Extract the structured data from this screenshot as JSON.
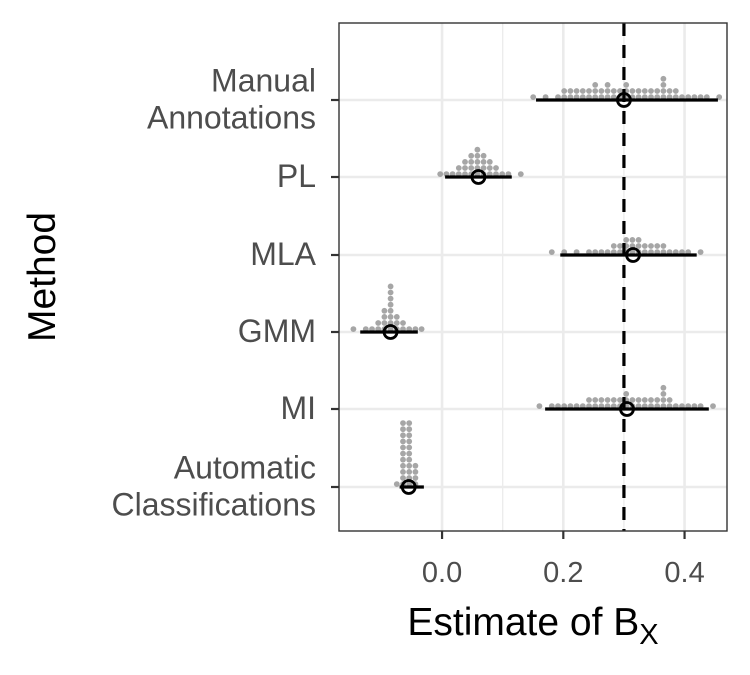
{
  "chart_data": {
    "type": "scatter",
    "title": "",
    "xlabel_main": "Estimate of B",
    "xlabel_sub": "X",
    "ylabel": "Method",
    "xlim": [
      -0.17,
      0.47
    ],
    "x_ticks": [
      "0.0",
      "0.2",
      "0.4"
    ],
    "x_tick_values": [
      0.0,
      0.2,
      0.4
    ],
    "grid": true,
    "reference_line": {
      "x": 0.3,
      "style": "dashed"
    },
    "colors": {
      "points": "#a6a6a6",
      "estimate": "#000000",
      "grid": "#ebebeb",
      "panel_border": "#333333"
    },
    "categories": [
      {
        "label_lines": [
          "Manual",
          "Annotations"
        ],
        "mean": 0.3,
        "ci": [
          0.155,
          0.455
        ],
        "points": [
          0.15,
          0.17,
          0.19,
          0.2,
          0.2,
          0.21,
          0.21,
          0.22,
          0.22,
          0.23,
          0.23,
          0.24,
          0.24,
          0.25,
          0.25,
          0.25,
          0.26,
          0.26,
          0.27,
          0.27,
          0.27,
          0.28,
          0.28,
          0.29,
          0.29,
          0.3,
          0.3,
          0.3,
          0.31,
          0.31,
          0.32,
          0.32,
          0.33,
          0.33,
          0.34,
          0.34,
          0.35,
          0.35,
          0.36,
          0.36,
          0.37,
          0.37,
          0.38,
          0.38,
          0.39,
          0.39,
          0.4,
          0.41,
          0.42,
          0.43,
          0.44,
          0.46
        ]
      },
      {
        "label_lines": [
          "PL"
        ],
        "mean": 0.06,
        "ci": [
          0.005,
          0.115
        ],
        "points": [
          0.0,
          0.01,
          0.02,
          0.03,
          0.03,
          0.04,
          0.04,
          0.04,
          0.05,
          0.05,
          0.05,
          0.05,
          0.06,
          0.06,
          0.06,
          0.06,
          0.06,
          0.07,
          0.07,
          0.07,
          0.07,
          0.08,
          0.08,
          0.08,
          0.09,
          0.09,
          0.1,
          0.11,
          0.13
        ]
      },
      {
        "label_lines": [
          "MLA"
        ],
        "mean": 0.315,
        "ci": [
          0.195,
          0.42
        ],
        "points": [
          0.18,
          0.2,
          0.22,
          0.24,
          0.25,
          0.26,
          0.27,
          0.28,
          0.28,
          0.29,
          0.29,
          0.3,
          0.3,
          0.3,
          0.31,
          0.31,
          0.31,
          0.32,
          0.32,
          0.32,
          0.33,
          0.33,
          0.34,
          0.34,
          0.35,
          0.35,
          0.36,
          0.37,
          0.38,
          0.39,
          0.4,
          0.41,
          0.43
        ]
      },
      {
        "label_lines": [
          "GMM"
        ],
        "mean": -0.085,
        "ci": [
          -0.135,
          -0.04
        ],
        "points": [
          -0.15,
          -0.13,
          -0.12,
          -0.11,
          -0.11,
          -0.1,
          -0.1,
          -0.1,
          -0.1,
          -0.09,
          -0.09,
          -0.09,
          -0.09,
          -0.08,
          -0.08,
          -0.08,
          -0.08,
          -0.07,
          -0.07,
          -0.07,
          -0.06,
          -0.06,
          -0.05,
          -0.04,
          -0.03
        ]
      },
      {
        "label_lines": [
          "MI"
        ],
        "mean": 0.305,
        "ci": [
          0.17,
          0.44
        ],
        "points": [
          0.16,
          0.18,
          0.19,
          0.2,
          0.21,
          0.22,
          0.23,
          0.24,
          0.24,
          0.25,
          0.25,
          0.26,
          0.26,
          0.27,
          0.27,
          0.28,
          0.28,
          0.29,
          0.29,
          0.3,
          0.3,
          0.3,
          0.31,
          0.31,
          0.32,
          0.32,
          0.33,
          0.33,
          0.34,
          0.34,
          0.35,
          0.35,
          0.36,
          0.36,
          0.37,
          0.37,
          0.38,
          0.38,
          0.39,
          0.4,
          0.41,
          0.42,
          0.43,
          0.45
        ]
      },
      {
        "label_lines": [
          "Automatic",
          "Classifications"
        ],
        "mean": -0.055,
        "ci": [
          -0.07,
          -0.03
        ],
        "points": [
          -0.07,
          -0.06,
          -0.06,
          -0.06,
          -0.06,
          -0.06,
          -0.06,
          -0.06,
          -0.06,
          -0.06,
          -0.06,
          -0.06,
          -0.05,
          -0.05,
          -0.05,
          -0.05,
          -0.05,
          -0.05,
          -0.05,
          -0.05,
          -0.05,
          -0.05,
          -0.05,
          -0.04,
          -0.04,
          -0.04,
          -0.04
        ]
      }
    ]
  }
}
